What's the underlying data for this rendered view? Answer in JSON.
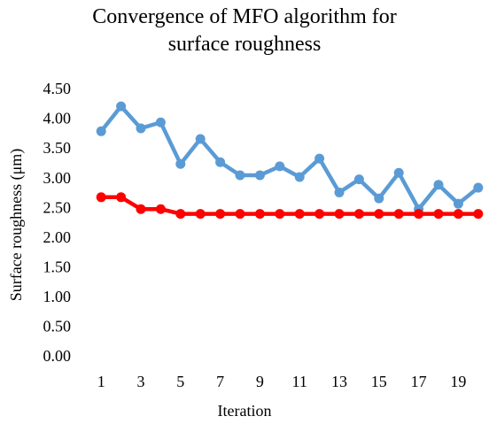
{
  "chart_data": {
    "type": "line",
    "title": "Convergence of MFO algorithm for surface roughness",
    "x_label": "Iteration",
    "y_label": "Surface roughness (μm)",
    "categories": [
      1,
      null,
      3,
      null,
      5,
      null,
      7,
      null,
      9,
      null,
      11,
      null,
      13,
      null,
      15,
      null,
      17,
      null,
      19,
      null
    ],
    "series": [
      {
        "color": "#5b9bd5",
        "values": [
          3.81,
          4.23,
          3.86,
          3.96,
          3.26,
          3.68,
          3.29,
          3.07,
          3.07,
          3.22,
          3.04,
          3.35,
          2.78,
          3.0,
          2.68,
          3.11,
          2.5,
          2.91,
          2.59,
          2.86
        ]
      },
      {
        "color": "#ff0000",
        "values": [
          2.7,
          2.7,
          2.5,
          2.5,
          2.42,
          2.42,
          2.42,
          2.42,
          2.42,
          2.42,
          2.42,
          2.42,
          2.42,
          2.42,
          2.42,
          2.42,
          2.42,
          2.42,
          2.42,
          2.42
        ]
      }
    ],
    "ylim": [
      0,
      4.5
    ],
    "yticks": [
      {
        "value": 0,
        "label": "0.00"
      },
      {
        "value": 0.5,
        "label": "0.50"
      },
      {
        "value": 1,
        "label": "1.00"
      },
      {
        "value": 1.5,
        "label": "1.50"
      },
      {
        "value": 2,
        "label": "2.00"
      },
      {
        "value": 2.5,
        "label": "2.50"
      },
      {
        "value": 3,
        "label": "3.00"
      },
      {
        "value": 3.5,
        "label": "3.50"
      },
      {
        "value": 4,
        "label": "4.00"
      },
      {
        "value": 4.5,
        "label": "4.50"
      }
    ],
    "grid": false
  }
}
